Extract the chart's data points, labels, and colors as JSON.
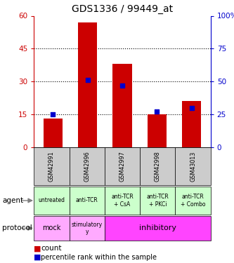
{
  "title": "GDS1336 / 99449_at",
  "samples": [
    "GSM42991",
    "GSM42996",
    "GSM42997",
    "GSM42998",
    "GSM43013"
  ],
  "counts": [
    13,
    57,
    38,
    15,
    21
  ],
  "percentile_ranks": [
    25,
    51,
    47,
    27,
    30
  ],
  "left_yticks": [
    0,
    15,
    30,
    45,
    60
  ],
  "right_yticks": [
    0,
    25,
    50,
    75,
    100
  ],
  "left_tick_color": "#cc0000",
  "right_tick_color": "#0000cc",
  "bar_color": "#cc0000",
  "dot_color": "#0000cc",
  "agent_labels": [
    "untreated",
    "anti-TCR",
    "anti-TCR\n+ CsA",
    "anti-TCR\n+ PKCi",
    "anti-TCR\n+ Combo"
  ],
  "agent_bg_color": "#ccffcc",
  "protocol_mock_color": "#ffaaff",
  "protocol_stim_color": "#ffaaff",
  "protocol_inhib_color": "#ff44ff",
  "sample_bg_color": "#cccccc",
  "legend_count_color": "#cc0000",
  "legend_pct_color": "#0000cc",
  "fig_bg": "#ffffff"
}
